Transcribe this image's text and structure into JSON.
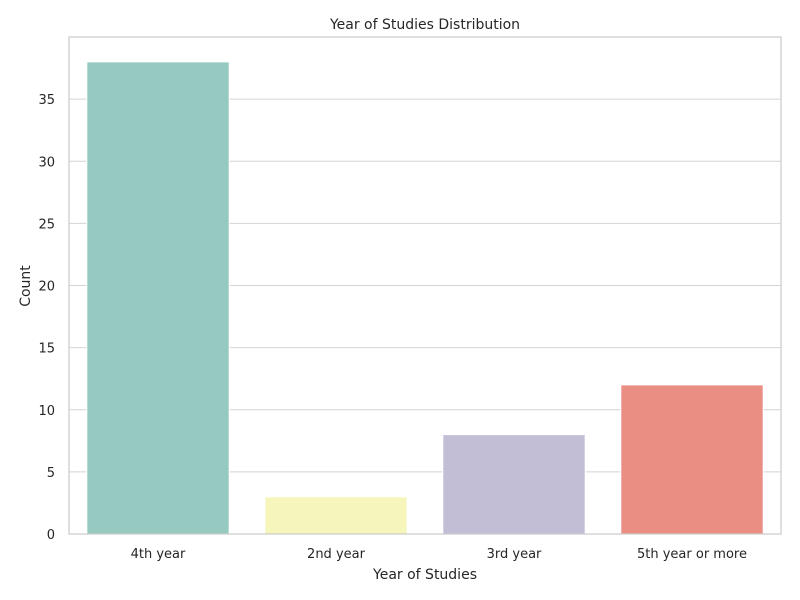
{
  "chart_data": {
    "type": "bar",
    "title": "Year of Studies Distribution",
    "xlabel": "Year of Studies",
    "ylabel": "Count",
    "categories": [
      "4th year",
      "2nd year",
      "3rd year",
      "5th year or more"
    ],
    "values": [
      38,
      3,
      8,
      12
    ],
    "colors": [
      "#96cac1",
      "#f6f6bc",
      "#c1bed6",
      "#ea8d82"
    ],
    "ylim": [
      0,
      40
    ],
    "yticks": [
      "0",
      "5",
      "10",
      "15",
      "20",
      "25",
      "30",
      "35"
    ],
    "grid": true,
    "legend": "none"
  }
}
